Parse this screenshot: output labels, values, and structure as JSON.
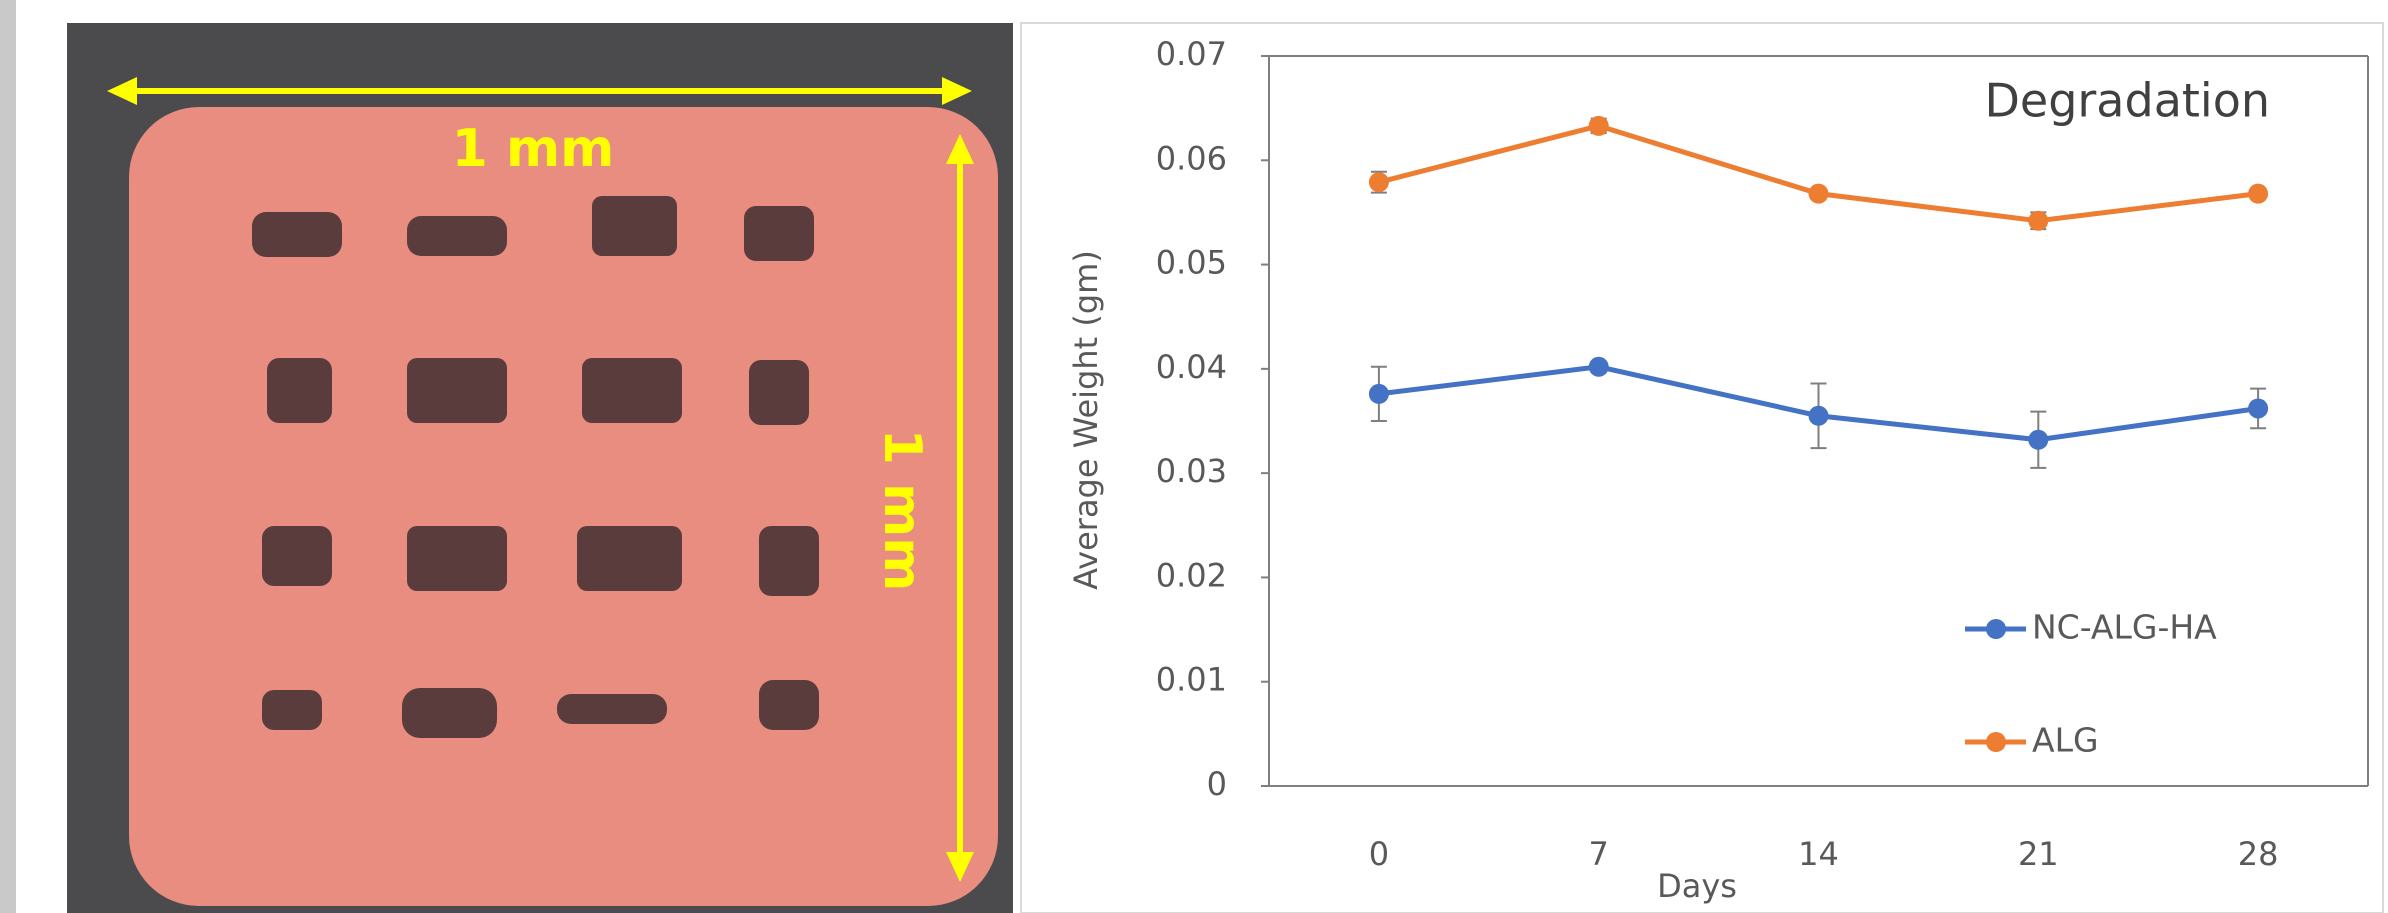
{
  "photo": {
    "width_label": "1 mm",
    "height_label": "1 mm"
  },
  "chart_data": {
    "type": "line",
    "title": "Degradation",
    "x_label": "Days",
    "y_label": "Average Weight (gm)",
    "categories": [
      "0",
      "7",
      "14",
      "21",
      "28"
    ],
    "series": [
      {
        "name": "NC-ALG-HA",
        "color": "#4472c4",
        "values": [
          0.0376,
          0.0402,
          0.0355,
          0.0332,
          0.0362
        ],
        "errors": [
          0.0026,
          0.0003,
          0.0031,
          0.0027,
          0.0019
        ]
      },
      {
        "name": "ALG",
        "color": "#ed7d31",
        "values": [
          0.0579,
          0.0633,
          0.0568,
          0.0542,
          0.0568
        ],
        "errors": [
          0.001,
          0.0007,
          0.0003,
          0.0008,
          0.0003
        ]
      }
    ],
    "ylim": [
      0,
      0.07
    ],
    "yticks": [
      0,
      0.01,
      0.02,
      0.03,
      0.04,
      0.05,
      0.06,
      0.07
    ],
    "legend": "lower right"
  }
}
